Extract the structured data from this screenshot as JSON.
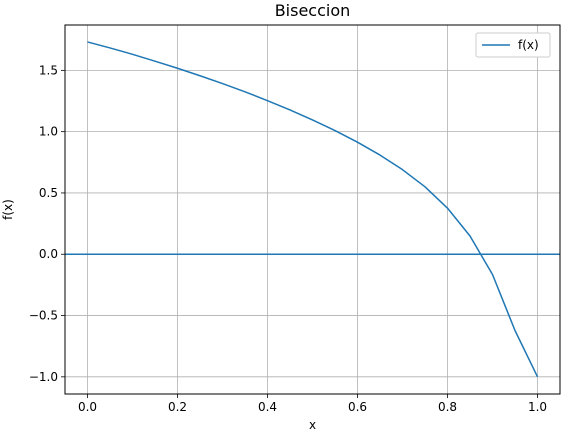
{
  "chart_data": {
    "type": "line",
    "title": "Biseccion",
    "xlabel": "x",
    "ylabel": "f(x)",
    "xlim": [
      -0.05,
      1.05
    ],
    "ylim": [
      -1.14,
      1.87
    ],
    "xticks": [
      0.0,
      0.2,
      0.4,
      0.6,
      0.8,
      1.0
    ],
    "xtick_labels": [
      "0.0",
      "0.2",
      "0.4",
      "0.6",
      "0.8",
      "1.0"
    ],
    "yticks": [
      -1.0,
      -0.5,
      0.0,
      0.5,
      1.0,
      1.5
    ],
    "ytick_labels": [
      "−1.0",
      "−0.5",
      "0.0",
      "0.5",
      "1.0",
      "1.5"
    ],
    "grid": true,
    "legend": {
      "position": "top-right",
      "entries": [
        "f(x)"
      ]
    },
    "series": [
      {
        "name": "f(x)",
        "color": "#1f77b4",
        "x": [
          0.0,
          0.05,
          0.1,
          0.15,
          0.2,
          0.25,
          0.3,
          0.35,
          0.4,
          0.45,
          0.5,
          0.55,
          0.6,
          0.65,
          0.7,
          0.75,
          0.8,
          0.85,
          0.9,
          0.95,
          1.0
        ],
        "y": [
          1.732,
          1.683,
          1.631,
          1.575,
          1.517,
          1.456,
          1.392,
          1.325,
          1.253,
          1.177,
          1.096,
          1.009,
          0.914,
          0.809,
          0.69,
          0.55,
          0.376,
          0.149,
          -0.165,
          -0.622,
          -1.0
        ]
      }
    ],
    "hlines": [
      {
        "y": 0.0,
        "color": "#1f77b4"
      }
    ]
  }
}
